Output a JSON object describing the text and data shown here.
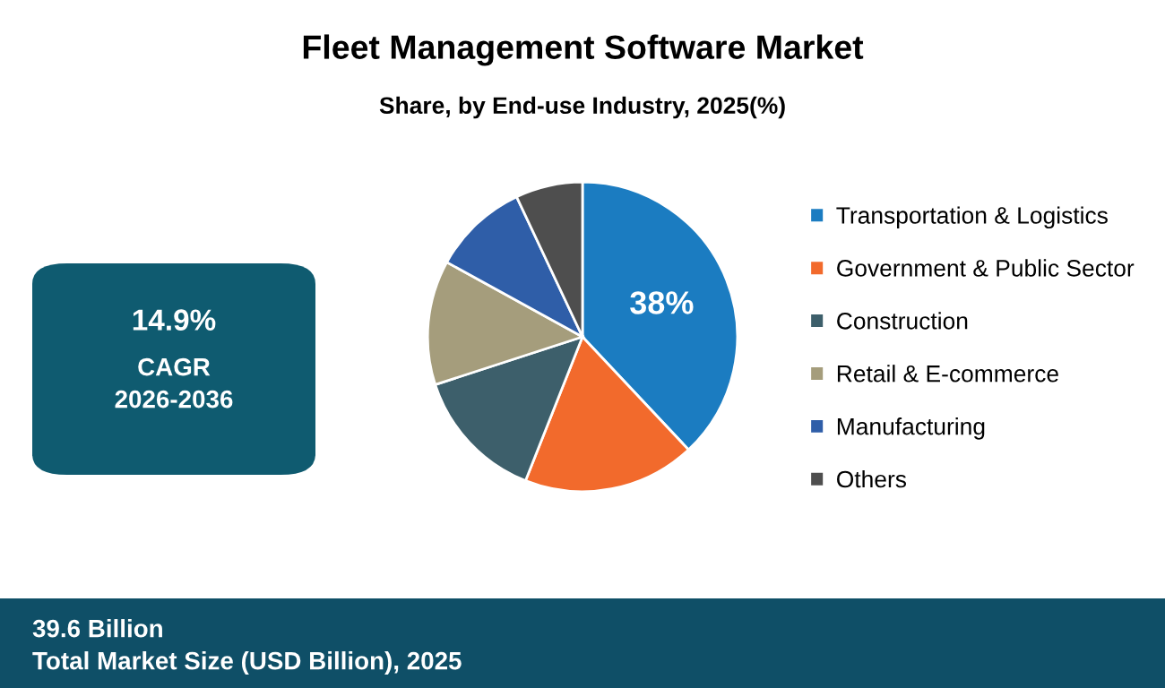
{
  "chart_data": {
    "type": "pie",
    "title": "Fleet Management Software Market",
    "subtitle": "Share, by End-use Industry, 2025(%)",
    "categories": [
      "Transportation & Logistics",
      "Government & Public Sector",
      "Construction",
      "Retail & E-commerce",
      "Manufacturing",
      "Others"
    ],
    "values": [
      38,
      18,
      14,
      13,
      10,
      7
    ],
    "colors": [
      "#1b7cc1",
      "#f26a2c",
      "#3d5f6b",
      "#a59d7c",
      "#2f5ea8",
      "#4e4e4e"
    ],
    "value_labels": [
      "38%",
      null,
      null,
      null,
      null,
      null
    ],
    "legend": "right",
    "annotations": [
      "14.9%",
      "CAGR",
      "2026-2036",
      "39.6 Billion",
      "Total Market Size (USD Billion), 2025"
    ]
  }
}
